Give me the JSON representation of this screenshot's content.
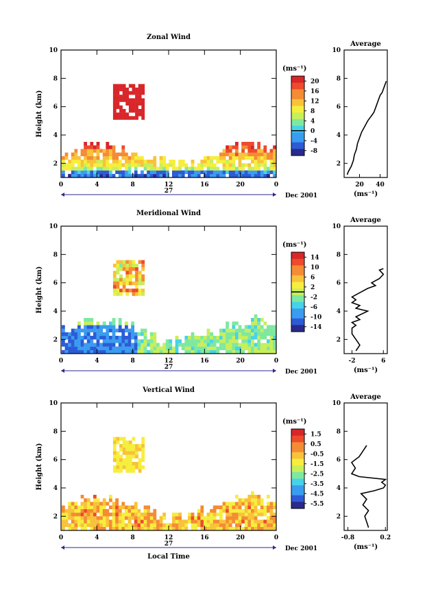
{
  "chart_data": [
    {
      "type": "heatmap",
      "title": "Zonal Wind",
      "ylabel": "Height (km)",
      "xticks": [
        "0",
        "4",
        "8",
        "12",
        "16",
        "20",
        "0"
      ],
      "xlim": [
        0,
        24
      ],
      "ylim": [
        1,
        10
      ],
      "yticks": [
        "2",
        "4",
        "6",
        "8",
        "10"
      ],
      "date_label": "27",
      "month_label": "Dec 2001",
      "colorbar": {
        "unit": "(ms⁻¹)",
        "ticks": [
          "20",
          "16",
          "12",
          "8",
          "4",
          "0",
          "-4",
          "-8"
        ],
        "min": -10,
        "max": 22,
        "zero_line": 0
      },
      "average": {
        "title": "Average",
        "xlabel": "(ms⁻¹)",
        "xticks": [
          "20",
          "40"
        ],
        "xlim": [
          5,
          47
        ],
        "yticks": [
          "2",
          "4",
          "6",
          "8",
          "10"
        ],
        "ylim": [
          1,
          10
        ],
        "profile": [
          [
            8,
            1.2
          ],
          [
            9,
            1.4
          ],
          [
            12,
            1.8
          ],
          [
            14,
            2.2
          ],
          [
            15,
            2.6
          ],
          [
            17,
            3.0
          ],
          [
            18,
            3.4
          ],
          [
            20,
            3.8
          ],
          [
            22,
            4.2
          ],
          [
            25,
            4.6
          ],
          [
            28,
            5.0
          ],
          [
            30,
            5.2
          ],
          [
            32,
            5.4
          ],
          [
            34,
            5.6
          ],
          [
            36,
            6.0
          ],
          [
            38,
            6.4
          ],
          [
            40,
            6.8
          ],
          [
            42,
            7.0
          ],
          [
            44,
            7.4
          ],
          [
            46,
            7.8
          ]
        ]
      }
    },
    {
      "type": "heatmap",
      "title": "Meridional Wind",
      "ylabel": "Height (km)",
      "xticks": [
        "0",
        "4",
        "8",
        "12",
        "16",
        "20",
        "0"
      ],
      "xlim": [
        0,
        24
      ],
      "ylim": [
        1,
        10
      ],
      "yticks": [
        "2",
        "4",
        "6",
        "8",
        "10"
      ],
      "date_label": "27",
      "month_label": "Dec 2001",
      "colorbar": {
        "unit": "(ms⁻¹)",
        "ticks": [
          "14",
          "10",
          "6",
          "2",
          "-2",
          "-6",
          "-10",
          "-14"
        ],
        "min": -16,
        "max": 16,
        "zero_line": 0
      },
      "average": {
        "title": "Average",
        "xlabel": "(ms⁻¹)",
        "xticks": [
          "-2",
          "6"
        ],
        "xlim": [
          -4,
          7
        ],
        "yticks": [
          "2",
          "4",
          "6",
          "8",
          "10"
        ],
        "ylim": [
          1,
          10
        ],
        "profile": [
          [
            -1,
            1.2
          ],
          [
            0,
            1.6
          ],
          [
            -1,
            2.0
          ],
          [
            -2,
            2.4
          ],
          [
            -2,
            2.8
          ],
          [
            -1,
            3.0
          ],
          [
            -2,
            3.2
          ],
          [
            0,
            3.4
          ],
          [
            -1,
            3.6
          ],
          [
            2,
            4.0
          ],
          [
            -1,
            4.2
          ],
          [
            0,
            4.4
          ],
          [
            -2,
            4.6
          ],
          [
            -1,
            4.8
          ],
          [
            -2,
            5.0
          ],
          [
            0,
            5.3
          ],
          [
            2,
            5.6
          ],
          [
            4,
            5.8
          ],
          [
            3,
            6.0
          ],
          [
            5,
            6.3
          ],
          [
            6,
            6.6
          ],
          [
            5,
            6.9
          ],
          [
            6,
            7.0
          ]
        ]
      }
    },
    {
      "type": "heatmap",
      "title": "Vertical Wind",
      "ylabel": "Height (km)",
      "xlabel": "Local Time",
      "xticks": [
        "0",
        "4",
        "8",
        "12",
        "16",
        "20",
        "0"
      ],
      "xlim": [
        0,
        24
      ],
      "ylim": [
        1,
        10
      ],
      "yticks": [
        "2",
        "4",
        "6",
        "8",
        "10"
      ],
      "date_label": "27",
      "month_label": "Dec 2001",
      "colorbar": {
        "unit": "(ms⁻¹)",
        "ticks": [
          "1.5",
          "0.5",
          "-0.5",
          "-1.5",
          "-2.5",
          "-3.5",
          "-4.5",
          "-5.5"
        ],
        "min": -6.2,
        "max": 2.2,
        "zero_line": null
      },
      "average": {
        "title": "Average",
        "xlabel": "(ms⁻¹)",
        "xticks": [
          "-0.8",
          "0.2"
        ],
        "xlim": [
          -0.9,
          0.25
        ],
        "yticks": [
          "2",
          "4",
          "6",
          "8",
          "10"
        ],
        "ylim": [
          1,
          10
        ],
        "profile": [
          [
            -0.25,
            1.2
          ],
          [
            -0.3,
            1.6
          ],
          [
            -0.35,
            2.0
          ],
          [
            -0.25,
            2.4
          ],
          [
            -0.4,
            2.8
          ],
          [
            -0.3,
            3.2
          ],
          [
            -0.45,
            3.6
          ],
          [
            -0.1,
            3.8
          ],
          [
            0.15,
            4.0
          ],
          [
            0.2,
            4.2
          ],
          [
            0.1,
            4.4
          ],
          [
            0.2,
            4.6
          ],
          [
            -0.5,
            4.8
          ],
          [
            -0.7,
            5.0
          ],
          [
            -0.6,
            5.4
          ],
          [
            -0.7,
            5.8
          ],
          [
            -0.5,
            6.2
          ],
          [
            -0.4,
            6.6
          ],
          [
            -0.3,
            7.0
          ]
        ]
      }
    }
  ],
  "colors": {
    "scale": [
      "#2a2a8c",
      "#2d5bd6",
      "#3a9cf0",
      "#46d3ea",
      "#7ee8a0",
      "#c8ef5a",
      "#f6ee3c",
      "#f8c23a",
      "#f58b34",
      "#ee4a2c",
      "#d8262a"
    ],
    "contour": "#000000",
    "axis": "#000000",
    "time_bar": "#2a2a8c"
  }
}
